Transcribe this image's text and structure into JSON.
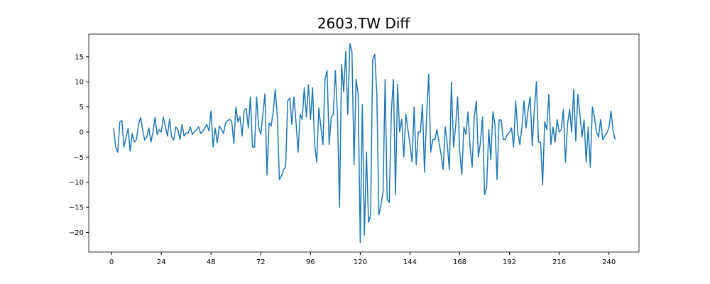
{
  "chart_data": {
    "type": "line",
    "title": "2603.TW Diff",
    "color": "#1f77b4",
    "x": [
      1,
      2,
      3,
      4,
      5,
      6,
      7,
      8,
      9,
      10,
      11,
      12,
      13,
      14,
      15,
      16,
      17,
      18,
      19,
      20,
      21,
      22,
      23,
      24,
      25,
      26,
      27,
      28,
      29,
      30,
      31,
      32,
      33,
      34,
      35,
      36,
      37,
      38,
      39,
      40,
      41,
      42,
      43,
      44,
      45,
      46,
      47,
      48,
      49,
      50,
      51,
      52,
      53,
      54,
      55,
      56,
      57,
      58,
      59,
      60,
      61,
      62,
      63,
      64,
      65,
      66,
      67,
      68,
      69,
      70,
      71,
      72,
      73,
      74,
      75,
      76,
      77,
      78,
      79,
      80,
      81,
      82,
      83,
      84,
      85,
      86,
      87,
      88,
      89,
      90,
      91,
      92,
      93,
      94,
      95,
      96,
      97,
      98,
      99,
      100,
      101,
      102,
      103,
      104,
      105,
      106,
      107,
      108,
      109,
      110,
      111,
      112,
      113,
      114,
      115,
      116,
      117,
      118,
      119,
      120,
      121,
      122,
      123,
      124,
      125,
      126,
      127,
      128,
      129,
      130,
      131,
      132,
      133,
      134,
      135,
      136,
      137,
      138,
      139,
      140,
      141,
      142,
      143,
      144,
      145,
      146,
      147,
      148,
      149,
      150,
      151,
      152,
      153,
      154,
      155,
      156,
      157,
      158,
      159,
      160,
      161,
      162,
      163,
      164,
      165,
      166,
      167,
      168,
      169,
      170,
      171,
      172,
      173,
      174,
      175,
      176,
      177,
      178,
      179,
      180,
      181,
      182,
      183,
      184,
      185,
      186,
      187,
      188,
      189,
      190,
      191,
      192,
      193,
      194,
      195,
      196,
      197,
      198,
      199,
      200,
      201,
      202,
      203,
      204,
      205,
      206,
      207,
      208,
      209,
      210,
      211,
      212,
      213,
      214,
      215,
      216,
      217,
      218,
      219,
      220,
      221,
      222,
      223,
      224,
      225,
      226,
      227,
      228,
      229,
      230,
      231,
      232,
      233,
      234,
      235,
      236,
      237,
      238,
      239,
      240,
      241,
      242,
      243
    ],
    "values": [
      0.8,
      -3,
      -4,
      2,
      2.3,
      -3,
      -1,
      0.7,
      -3.8,
      -0.3,
      -2,
      -1.5,
      1.5,
      2.9,
      0.5,
      -1.6,
      -1,
      0.8,
      -2,
      0,
      2.9,
      -0.5,
      0.5,
      0,
      3,
      1,
      -0.8,
      2.6,
      -1,
      -1.6,
      1,
      0.5,
      -1.5,
      1.5,
      -0.8,
      -0.2,
      -0.2,
      1,
      -0.5,
      0,
      0.5,
      1,
      -0.3,
      0.2,
      0.8,
      1.5,
      0.2,
      4.2,
      -3,
      0.8,
      -2.2,
      1.2,
      0.5,
      -0.3,
      1.8,
      2.3,
      2.5,
      2.1,
      -2.3,
      5,
      2,
      3,
      -0.8,
      4.3,
      4.7,
      0.8,
      7,
      -3,
      -3,
      7,
      1,
      -0.5,
      3.5,
      7.6,
      -8.6,
      1.8,
      1.2,
      4,
      8.5,
      3,
      -9.5,
      -8.7,
      -7.5,
      -7,
      6.2,
      6.8,
      1.5,
      7,
      2,
      -4,
      3.5,
      2.5,
      8.8,
      3,
      9.4,
      2.5,
      8.8,
      -2.5,
      -6,
      4.8,
      1,
      -2.5,
      10.5,
      12.2,
      -2.5,
      3,
      3.5,
      12.2,
      3.5,
      -15,
      13.5,
      8,
      16,
      3.5,
      17.6,
      16,
      -6.5,
      10.5,
      7.5,
      -22,
      5.5,
      -20.5,
      -4,
      -18,
      -16.5,
      14.5,
      15.5,
      7.5,
      -16.5,
      -14.5,
      -12,
      10.5,
      -13.5,
      -14,
      4,
      10.5,
      -12.5,
      9.5,
      0,
      2.5,
      -5,
      3.5,
      0.5,
      -2.5,
      -6,
      5,
      -6.5,
      0,
      0,
      5.5,
      -8,
      3,
      11.5,
      -4,
      -1.5,
      -1.5,
      0.5,
      -2,
      -4.5,
      -7.5,
      1,
      -2.5,
      -7.5,
      10,
      -3,
      1,
      7,
      -4,
      -8.5,
      1,
      -0.5,
      4,
      -3,
      -7,
      3,
      6.2,
      -5,
      -2,
      3,
      -12.5,
      -11,
      0.5,
      -5.5,
      4,
      1.5,
      -9.5,
      2.4,
      2.4,
      -1.5,
      -1.5,
      -0.5,
      0,
      0.8,
      -3,
      6.2,
      0,
      -2.5,
      1,
      6.2,
      0.8,
      4.5,
      7,
      -2.8,
      4.5,
      10,
      -2,
      -2,
      -10.5,
      2,
      0.5,
      7.5,
      -2.5,
      1,
      -2,
      2.5,
      0,
      0.5,
      4.5,
      -6,
      1.5,
      4.5,
      0,
      8.5,
      -1.8,
      7.5,
      3.5,
      -1,
      2.4,
      -6,
      1,
      -7,
      5,
      3,
      0,
      -1,
      2.5,
      -1.5,
      -0.8,
      -0.2,
      0.8,
      4.2,
      0.2,
      -1.5
    ],
    "xlim": [
      -11,
      254.5
    ],
    "ylim": [
      -23.9,
      19.5
    ],
    "xticks": [
      0,
      24,
      48,
      72,
      96,
      120,
      144,
      168,
      192,
      216,
      240
    ],
    "yticks": [
      {
        "value": -20,
        "label": "−20"
      },
      {
        "value": -15,
        "label": "−15"
      },
      {
        "value": -10,
        "label": "−10"
      },
      {
        "value": -5,
        "label": "−5"
      },
      0,
      5,
      10,
      15
    ]
  }
}
